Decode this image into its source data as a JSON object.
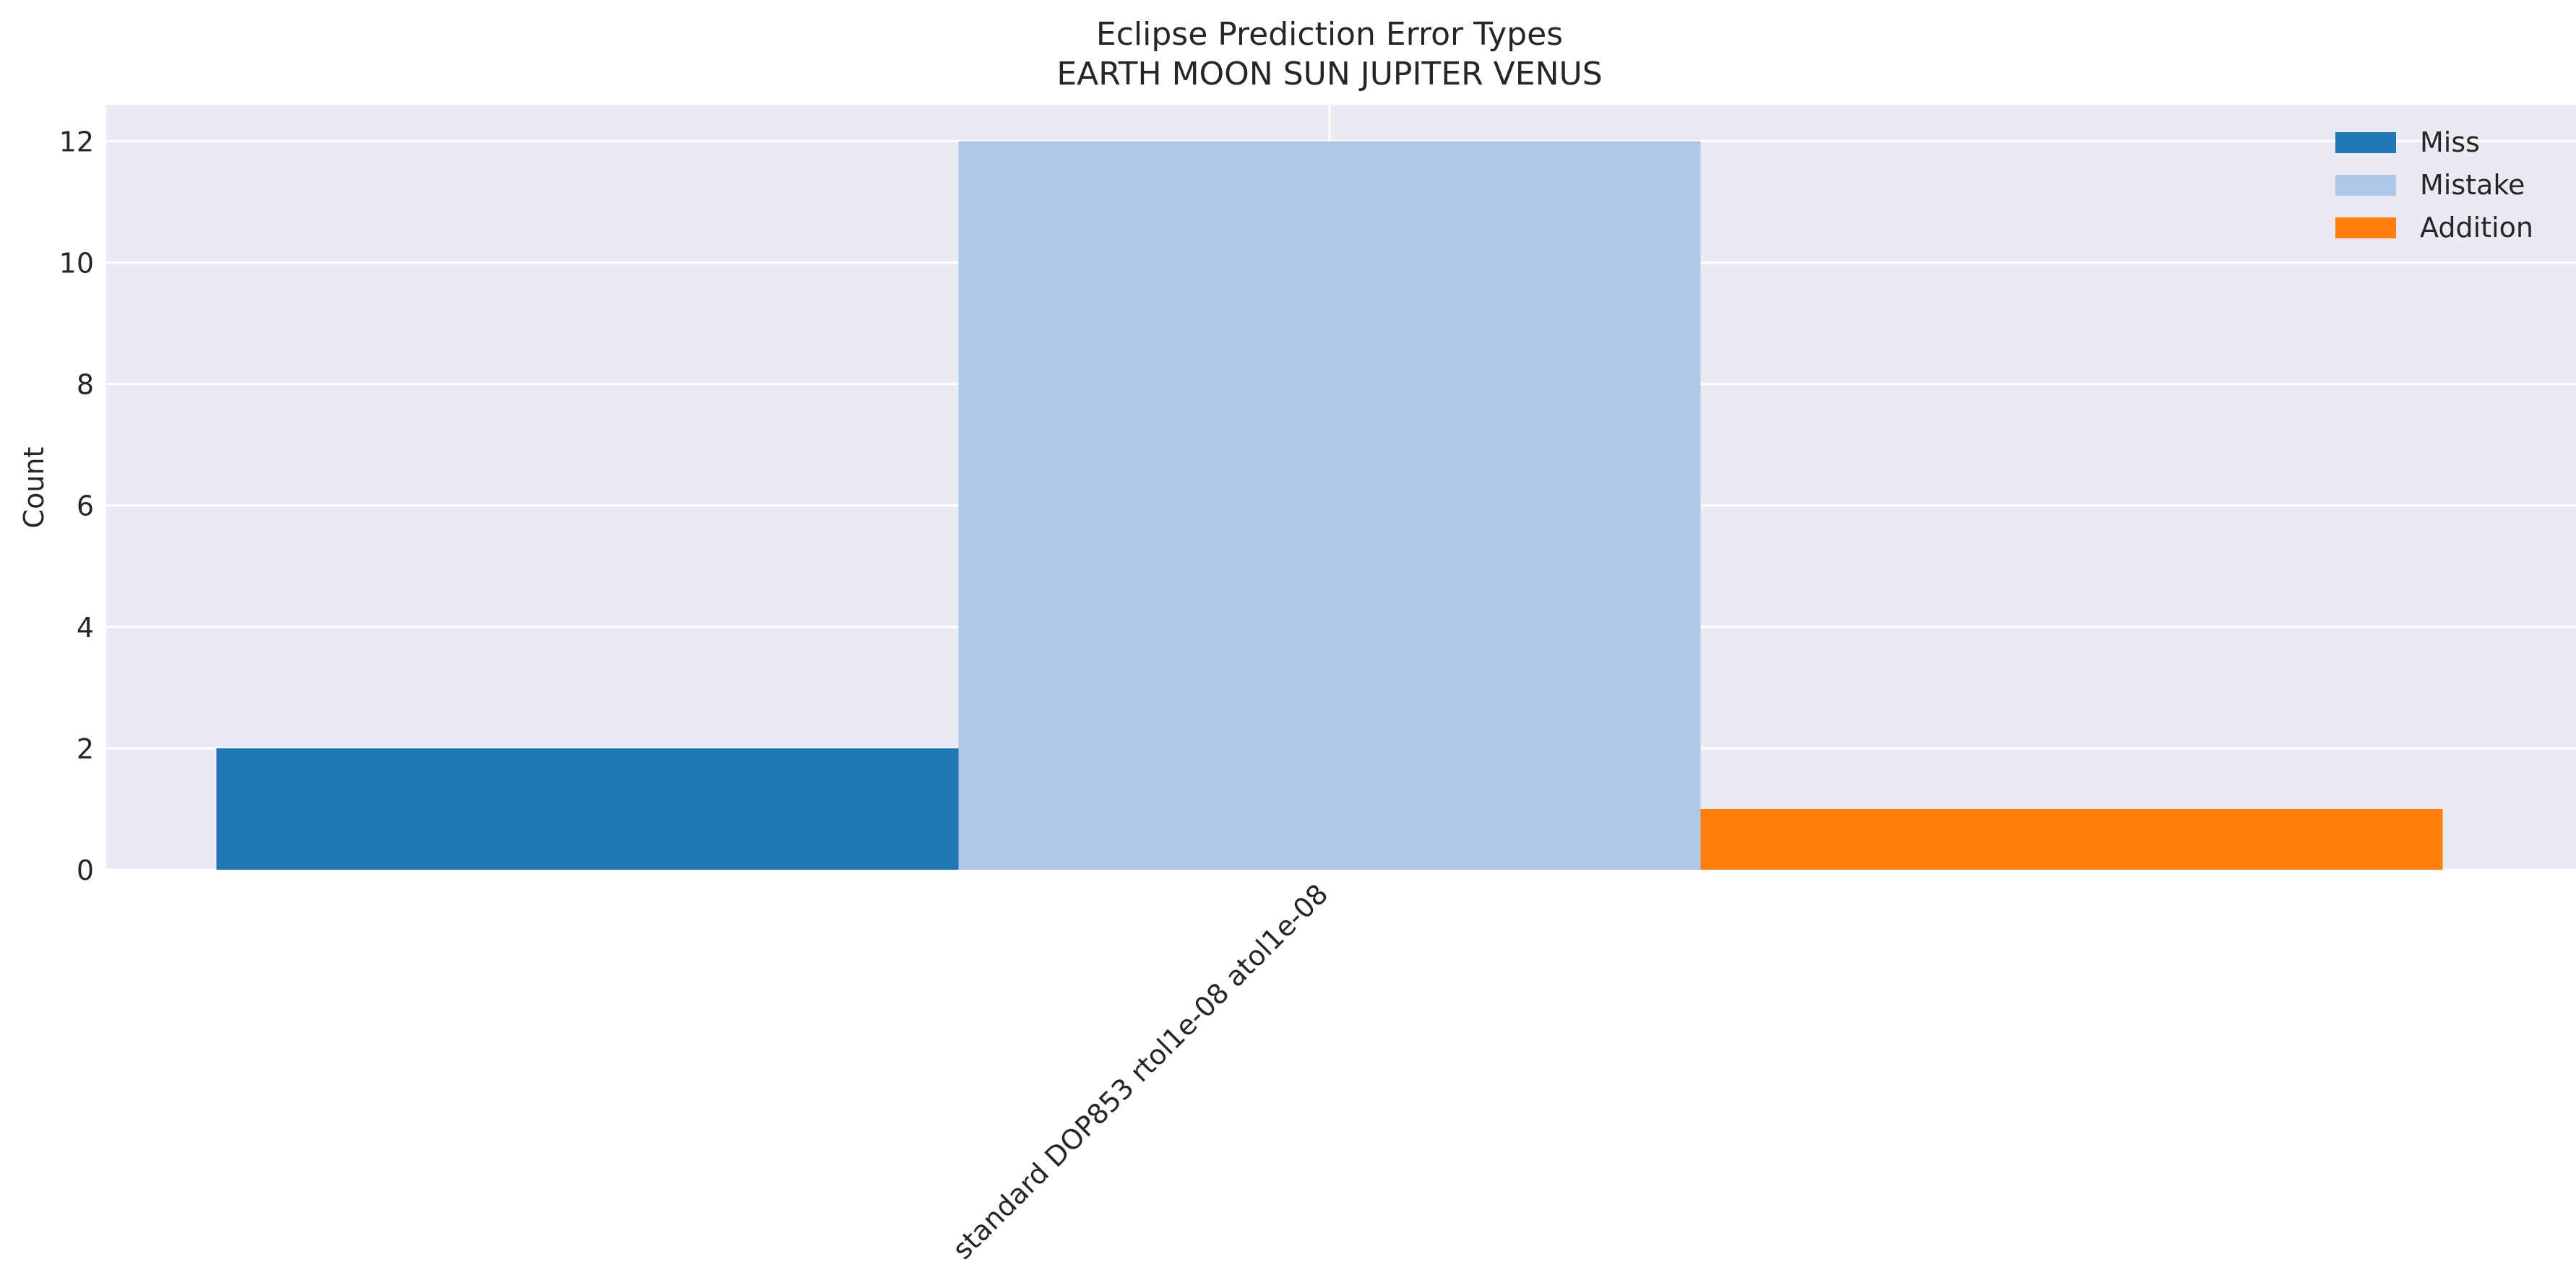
{
  "chart_data": {
    "type": "bar",
    "title": "Eclipse Prediction Error Types",
    "subtitle": "EARTH MOON SUN JUPITER VENUS",
    "xlabel": "",
    "ylabel": "Count",
    "categories": [
      "standard DOP853 rtol1e-08 atol1e-08"
    ],
    "series": [
      {
        "name": "Miss",
        "color": "#1f77b4",
        "values": [
          2
        ]
      },
      {
        "name": "Mistake",
        "color": "#aec7e8",
        "values": [
          12
        ]
      },
      {
        "name": "Addition",
        "color": "#ff7f0e",
        "values": [
          1
        ]
      }
    ],
    "ylim": [
      0,
      12.6
    ],
    "yticks": [
      0,
      2,
      4,
      6,
      8,
      10,
      12
    ],
    "grid": true,
    "legend_position": "top-right",
    "background_color": "#eaeaf2",
    "grid_color": "#ffffff"
  }
}
